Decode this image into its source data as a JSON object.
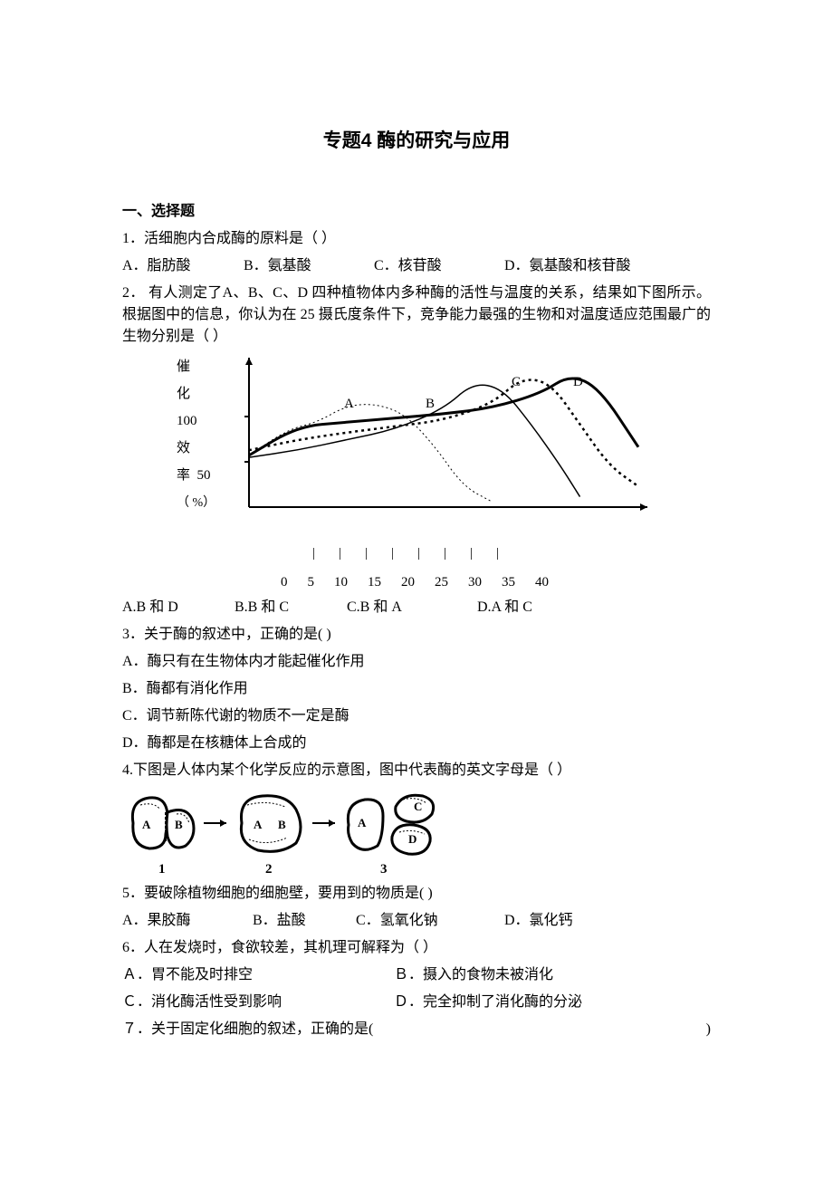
{
  "title": "专题4 酶的研究与应用",
  "section_heading": "一、选择题",
  "q1": {
    "text": "1．活细胞内合成酶的原料是（    ）",
    "A": "A．脂肪酸",
    "B": "B．氨基酸",
    "C": "C．核苷酸",
    "D": "D．氨基酸和核苷酸"
  },
  "q2": {
    "text1": "2．  有人测定了A、B、C、D 四种植物体内多种酶的活性与温度的关系，结果如下图所示。根据图中的信息，你认为在 25 摄氏度条件下，竞争能力最强的生物和对温度适应范围最广的生物分别是（    ）",
    "A": "A.B 和 D",
    "B": "B.B 和 C",
    "C": "C.B 和 A",
    "D": "D.A 和 C"
  },
  "chart": {
    "type": "line",
    "ylabel_chars": [
      "催",
      "化",
      "效",
      "率"
    ],
    "y_unit": "（ %）",
    "y_ticks": [
      "100",
      "50"
    ],
    "x_ticks_marks": [
      "|",
      "|",
      "|",
      "|",
      "|",
      "|",
      "|",
      "|"
    ],
    "x_ticks": [
      "0",
      "5",
      "10",
      "15",
      "20",
      "25",
      "30",
      "35",
      "40"
    ],
    "series_labels": [
      "A",
      "B",
      "C",
      "D"
    ],
    "colors": {
      "axis": "#000000",
      "A": "#000000",
      "B": "#000000",
      "C": "#000000",
      "D": "#000000"
    },
    "line_styles": {
      "A": "dotted-thin",
      "B": "solid-thin",
      "C": "dotted-thick",
      "D": "solid-thick"
    },
    "A": {
      "x": [
        0,
        4,
        7,
        10,
        13,
        16,
        19,
        22,
        25
      ],
      "y": [
        50,
        75,
        82,
        98,
        100,
        90,
        60,
        20,
        5
      ]
    },
    "B": {
      "x": [
        0,
        5,
        10,
        15,
        20,
        23,
        26,
        29,
        32,
        34
      ],
      "y": [
        48,
        55,
        65,
        75,
        95,
        120,
        115,
        80,
        40,
        10
      ]
    },
    "C": {
      "x": [
        0,
        5,
        10,
        15,
        20,
        25,
        28,
        31,
        34,
        37,
        40
      ],
      "y": [
        55,
        65,
        72,
        78,
        84,
        100,
        125,
        120,
        80,
        40,
        20
      ]
    },
    "D": {
      "x": [
        0,
        5,
        10,
        15,
        20,
        25,
        30,
        33,
        36,
        40
      ],
      "y": [
        50,
        78,
        82,
        86,
        90,
        96,
        110,
        128,
        115,
        58
      ]
    },
    "xlim": [
      0,
      40
    ],
    "ylim": [
      0,
      140
    ]
  },
  "q3": {
    "text": "3．关于酶的叙述中，正确的是(    )",
    "A": "A．酶只有在生物体内才能起催化作用",
    "B": "B．酶都有消化作用",
    "C": "C．调节新陈代谢的物质不一定是酶",
    "D": "D．酶都是在核糖体上合成的"
  },
  "q4": {
    "text": "4.下图是人体内某个化学反应的示意图，图中代表酶的英文字母是（    ）",
    "labels": {
      "s1": "1",
      "s2": "2",
      "s3": "3"
    },
    "inner_labels": {
      "A": "A",
      "B": "B",
      "C": "C",
      "D": "D"
    }
  },
  "q5": {
    "text": "5．要破除植物细胞的细胞壁，要用到的物质是(    )",
    "A": "A．果胶酶",
    "B": "B．盐酸",
    "C": "C．氢氧化钠",
    "D": "D．氯化钙"
  },
  "q6": {
    "text": "6．人在发烧时，食欲较差，其机理可解释为（    ）",
    "A": "Ａ．胃不能及时排空",
    "B": "Ｂ．摄入的食物未被消化",
    "C": "Ｃ．消化酶活性受到影响",
    "D": "Ｄ．完全抑制了消化酶的分泌"
  },
  "q7": {
    "text": "７．关于固定化细胞的叙述，正确的是(",
    "rparen": ")"
  }
}
